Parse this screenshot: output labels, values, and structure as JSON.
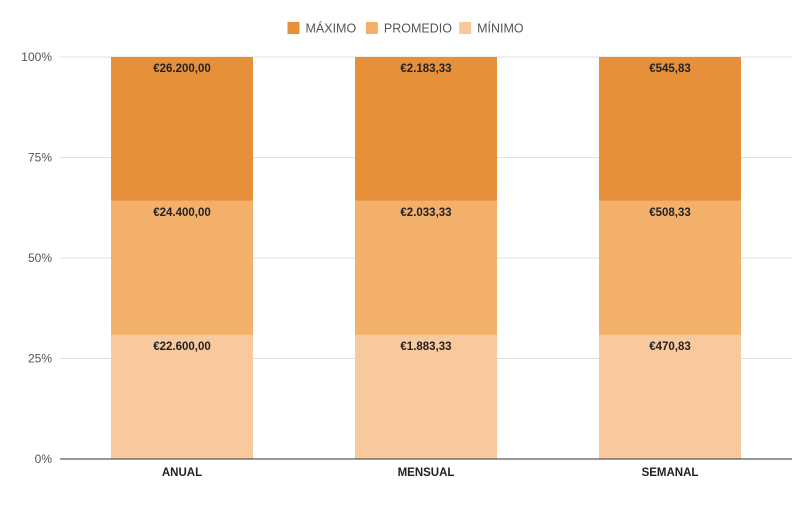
{
  "chart_data": {
    "type": "bar",
    "stacked": "percent",
    "categories": [
      "ANUAL",
      "MENSUAL",
      "SEMANAL"
    ],
    "series": [
      {
        "name": "MÍNIMO",
        "color": "#f8c99c",
        "values": [
          22600.0,
          1883.33,
          470.83
        ],
        "labels": [
          "€22.600,00",
          "€1.883,33",
          "€470,83"
        ]
      },
      {
        "name": "PROMEDIO",
        "color": "#f2b06a",
        "values": [
          24400.0,
          2033.33,
          508.33
        ],
        "labels": [
          "€24.400,00",
          "€2.033,33",
          "€508,33"
        ]
      },
      {
        "name": "MÁXIMO",
        "color": "#e6913a",
        "values": [
          26200.0,
          2183.33,
          545.83
        ],
        "labels": [
          "€26.200,00",
          "€2.183,33",
          "€545,83"
        ]
      }
    ],
    "legend_order": [
      "MÁXIMO",
      "PROMEDIO",
      "MÍNIMO"
    ],
    "ylim": [
      0,
      100
    ],
    "yticks": [
      "0%",
      "25%",
      "50%",
      "75%",
      "100%"
    ],
    "grid": true,
    "legend_position": "top-center",
    "title": "",
    "xlabel": "",
    "ylabel": ""
  }
}
